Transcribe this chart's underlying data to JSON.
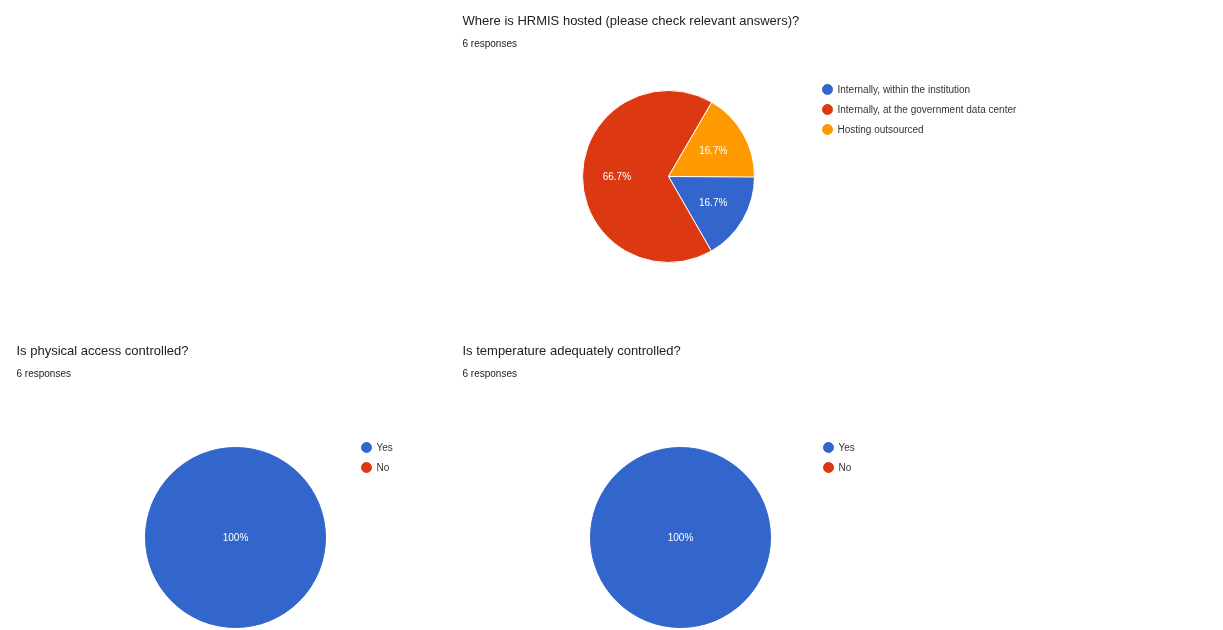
{
  "chart_data": [
    {
      "type": "pie",
      "title": "Where is HRMIS hosted (please check relevant answers)?",
      "subtitle": "6 responses",
      "categories": [
        "Internally, within the institution",
        "Internally, at the government data center",
        "Hosting outsourced"
      ],
      "values": [
        16.7,
        66.7,
        16.7
      ],
      "colors": [
        "#3366cc",
        "#dc3912",
        "#ff9900"
      ],
      "value_labels": [
        "16.7%",
        "66.7%",
        "16.7%"
      ],
      "legend": "right"
    },
    {
      "type": "pie",
      "title": "Is physical access controlled?",
      "subtitle": "6 responses",
      "categories": [
        "Yes",
        "No"
      ],
      "values": [
        100,
        0
      ],
      "colors": [
        "#3366cc",
        "#dc3912"
      ],
      "value_labels": [
        "100%",
        null
      ],
      "legend": "right"
    },
    {
      "type": "pie",
      "title": "Is temperature adequately controlled?",
      "subtitle": "6 responses",
      "categories": [
        "Yes",
        "No"
      ],
      "values": [
        100,
        0
      ],
      "colors": [
        "#3366cc",
        "#dc3912"
      ],
      "value_labels": [
        "100%",
        null
      ],
      "legend": "right"
    }
  ]
}
